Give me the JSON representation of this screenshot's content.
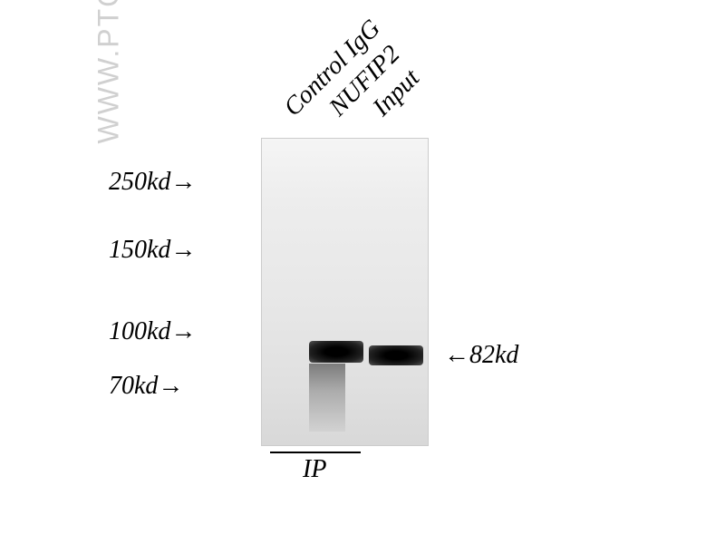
{
  "watermark": "WWW.PTGLAB.COM",
  "lanes": {
    "lane1": "Control IgG",
    "lane2": "NUFIP2",
    "lane3": "Input"
  },
  "mw_markers": {
    "marker1": "250kd→",
    "marker2": "150kd→",
    "marker3": "100kd→",
    "marker4": "70kd→"
  },
  "target": "←82kd",
  "ip_label": "IP",
  "blot": {
    "background_gradient": [
      "#f5f5f5",
      "#ededed",
      "#e8e8e8",
      "#e0e0e0",
      "#d8d8d8"
    ],
    "border_color": "#cccccc",
    "bands": [
      {
        "lane": 2,
        "position_kd": 82,
        "intensity": "strong"
      },
      {
        "lane": 3,
        "position_kd": 82,
        "intensity": "strong"
      }
    ],
    "band_color": "#000000"
  },
  "styling": {
    "font_family": "Times New Roman",
    "font_style": "italic",
    "label_fontsize": 28,
    "watermark_color": "#d0d0d0",
    "text_color": "#000000",
    "background_color": "#ffffff",
    "lane_label_rotation": -45
  }
}
